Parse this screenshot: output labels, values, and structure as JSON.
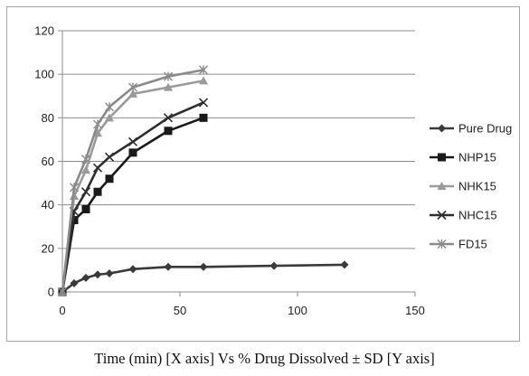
{
  "caption": "Time (min) [X axis] Vs % Drug Dissolved ± SD [Y axis]",
  "chart_data": {
    "type": "line",
    "title": "",
    "xlabel": "",
    "ylabel": "",
    "xlim": [
      0,
      150
    ],
    "ylim": [
      0,
      120
    ],
    "xticks": [
      0,
      50,
      100,
      150
    ],
    "yticks": [
      0,
      20,
      40,
      60,
      80,
      100,
      120
    ],
    "grid": "horizontal",
    "legend_position": "right",
    "series": [
      {
        "name": "Pure Drug",
        "color": "#3a3a3a",
        "marker": "diamond",
        "x": [
          0,
          5,
          10,
          15,
          20,
          30,
          45,
          60,
          90,
          120
        ],
        "y": [
          0,
          4,
          6.5,
          8,
          8.5,
          10.5,
          11.5,
          11.5,
          12,
          12.5
        ]
      },
      {
        "name": "NHP15",
        "color": "#1a1a1a",
        "marker": "square",
        "x": [
          0,
          5,
          10,
          15,
          20,
          30,
          45,
          60
        ],
        "y": [
          0,
          33,
          38,
          46,
          52,
          64,
          74,
          80
        ]
      },
      {
        "name": "NHK15",
        "color": "#9a9a9a",
        "marker": "triangle",
        "x": [
          0,
          5,
          10,
          15,
          20,
          30,
          45,
          60
        ],
        "y": [
          0,
          44,
          56,
          73,
          80,
          91,
          94,
          97
        ]
      },
      {
        "name": "NHC15",
        "color": "#2e2e2e",
        "marker": "x",
        "x": [
          0,
          5,
          10,
          15,
          20,
          30,
          45,
          60
        ],
        "y": [
          0,
          37,
          46,
          57,
          62,
          69,
          80,
          87
        ]
      },
      {
        "name": "FD15",
        "color": "#8a8a8a",
        "marker": "star",
        "x": [
          0,
          5,
          10,
          15,
          20,
          30,
          45,
          60
        ],
        "y": [
          0,
          48,
          61,
          77,
          85,
          94,
          99,
          102
        ]
      }
    ]
  }
}
